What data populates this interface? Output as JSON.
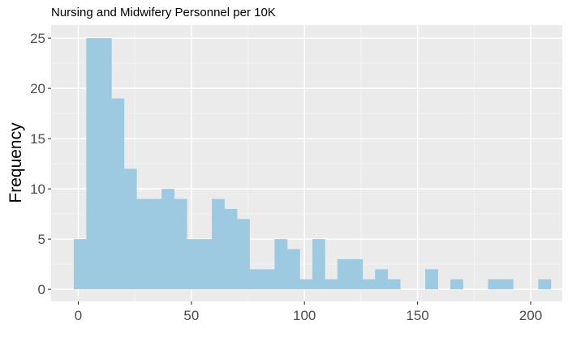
{
  "chart_data": {
    "type": "bar",
    "title": "Nursing and Midwifery Personnel per 10K",
    "xlabel": "",
    "ylabel": "Frequency",
    "bin_width": 5.55,
    "bins": [
      {
        "x0": -2.0,
        "count": 5
      },
      {
        "x0": 3.55,
        "count": 25
      },
      {
        "x0": 9.1,
        "count": 25
      },
      {
        "x0": 14.65,
        "count": 19
      },
      {
        "x0": 20.2,
        "count": 12
      },
      {
        "x0": 25.75,
        "count": 9
      },
      {
        "x0": 31.3,
        "count": 9
      },
      {
        "x0": 36.85,
        "count": 10
      },
      {
        "x0": 42.4,
        "count": 9
      },
      {
        "x0": 47.95,
        "count": 5
      },
      {
        "x0": 53.5,
        "count": 5
      },
      {
        "x0": 59.05,
        "count": 9
      },
      {
        "x0": 64.6,
        "count": 8
      },
      {
        "x0": 70.15,
        "count": 7
      },
      {
        "x0": 75.7,
        "count": 2
      },
      {
        "x0": 81.25,
        "count": 2
      },
      {
        "x0": 86.8,
        "count": 5
      },
      {
        "x0": 92.35,
        "count": 4
      },
      {
        "x0": 97.9,
        "count": 1
      },
      {
        "x0": 103.45,
        "count": 5
      },
      {
        "x0": 109.0,
        "count": 1
      },
      {
        "x0": 114.55,
        "count": 3
      },
      {
        "x0": 120.1,
        "count": 3
      },
      {
        "x0": 125.65,
        "count": 1
      },
      {
        "x0": 131.2,
        "count": 2
      },
      {
        "x0": 136.75,
        "count": 1
      },
      {
        "x0": 142.3,
        "count": 0
      },
      {
        "x0": 147.85,
        "count": 0
      },
      {
        "x0": 153.4,
        "count": 2
      },
      {
        "x0": 158.95,
        "count": 0
      },
      {
        "x0": 164.5,
        "count": 1
      },
      {
        "x0": 170.05,
        "count": 0
      },
      {
        "x0": 175.6,
        "count": 0
      },
      {
        "x0": 181.15,
        "count": 1
      },
      {
        "x0": 186.7,
        "count": 1
      },
      {
        "x0": 192.25,
        "count": 0
      },
      {
        "x0": 197.8,
        "count": 0
      },
      {
        "x0": 203.35,
        "count": 1
      }
    ],
    "xlim": [
      -12,
      214
    ],
    "ylim": [
      -1.2,
      26.3
    ],
    "x_ticks": [
      0,
      50,
      100,
      150,
      200
    ],
    "y_ticks": [
      0,
      5,
      10,
      15,
      20,
      25
    ],
    "grid": true,
    "colors": {
      "bar": "#9ecae1",
      "panel": "#ebebeb",
      "grid_major": "#ffffff",
      "grid_minor": "#f5f5f5"
    }
  }
}
